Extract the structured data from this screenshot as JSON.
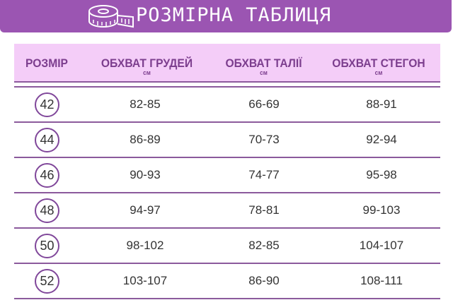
{
  "banner": {
    "title": "РОЗМІРНА ТАБЛИЦЯ",
    "icon": "measuring-tape-icon",
    "color": "#9b55b2"
  },
  "headers": [
    {
      "label": "РОЗМІР",
      "unit": ""
    },
    {
      "label": "ОБХВАТ ГРУДЕЙ",
      "unit": "см"
    },
    {
      "label": "ОБХВАТ ТАЛІЇ",
      "unit": "см"
    },
    {
      "label": "ОБХВАТ СТЕГОН",
      "unit": "см"
    }
  ],
  "rows": [
    {
      "size": "42",
      "bust": "82-85",
      "waist": "66-69",
      "hips": "88-91"
    },
    {
      "size": "44",
      "bust": "86-89",
      "waist": "70-73",
      "hips": "92-94"
    },
    {
      "size": "46",
      "bust": "90-93",
      "waist": "74-77",
      "hips": "95-98"
    },
    {
      "size": "48",
      "bust": "94-97",
      "waist": "78-81",
      "hips": "99-103"
    },
    {
      "size": "50",
      "bust": "98-102",
      "waist": "82-85",
      "hips": "104-107"
    },
    {
      "size": "52",
      "bust": "103-107",
      "waist": "86-90",
      "hips": "108-111"
    }
  ]
}
